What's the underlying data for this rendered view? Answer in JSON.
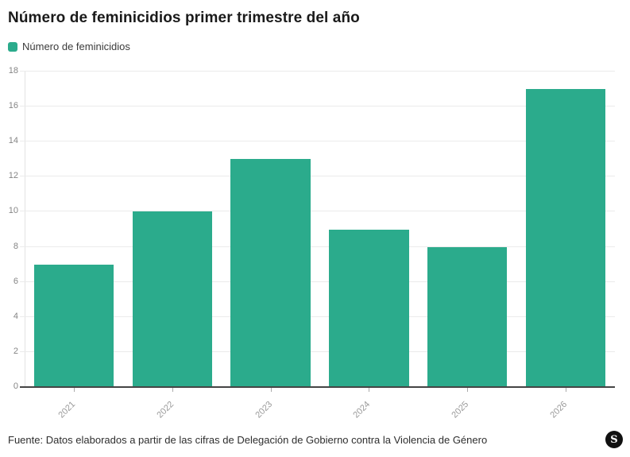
{
  "header": {
    "title": "Número de feminicidios primer trimestre del año"
  },
  "legend": {
    "label": "Número de feminicidios",
    "swatch_color": "#2BAB8C"
  },
  "chart_data": {
    "type": "bar",
    "categories": [
      "2021",
      "2022",
      "2023",
      "2024",
      "2025",
      "2026"
    ],
    "values": [
      7,
      10,
      13,
      9,
      8,
      17
    ],
    "title": "Número de feminicidios primer trimestre del año",
    "xlabel": "",
    "ylabel": "",
    "ylim": [
      0,
      18
    ],
    "ytick_step": 2,
    "yticks": [
      0,
      2,
      4,
      6,
      8,
      10,
      12,
      14,
      16,
      18
    ],
    "grid": true,
    "bar_color": "#2BAB8C",
    "legend_position": "top-left",
    "x_label_rotation_deg": -45
  },
  "footer": {
    "source": "Fuente: Datos elaborados a partir de las cifras de Delegación de Gobierno contra la Violencia de Género",
    "logo_letter": "S"
  },
  "colors": {
    "accent_green": "#2BAB8C",
    "gridline": "#ebebeb",
    "baseline": "#454545",
    "axis_label": "#858585",
    "title_text": "#1a1a1a",
    "logo_bg": "#101010"
  }
}
